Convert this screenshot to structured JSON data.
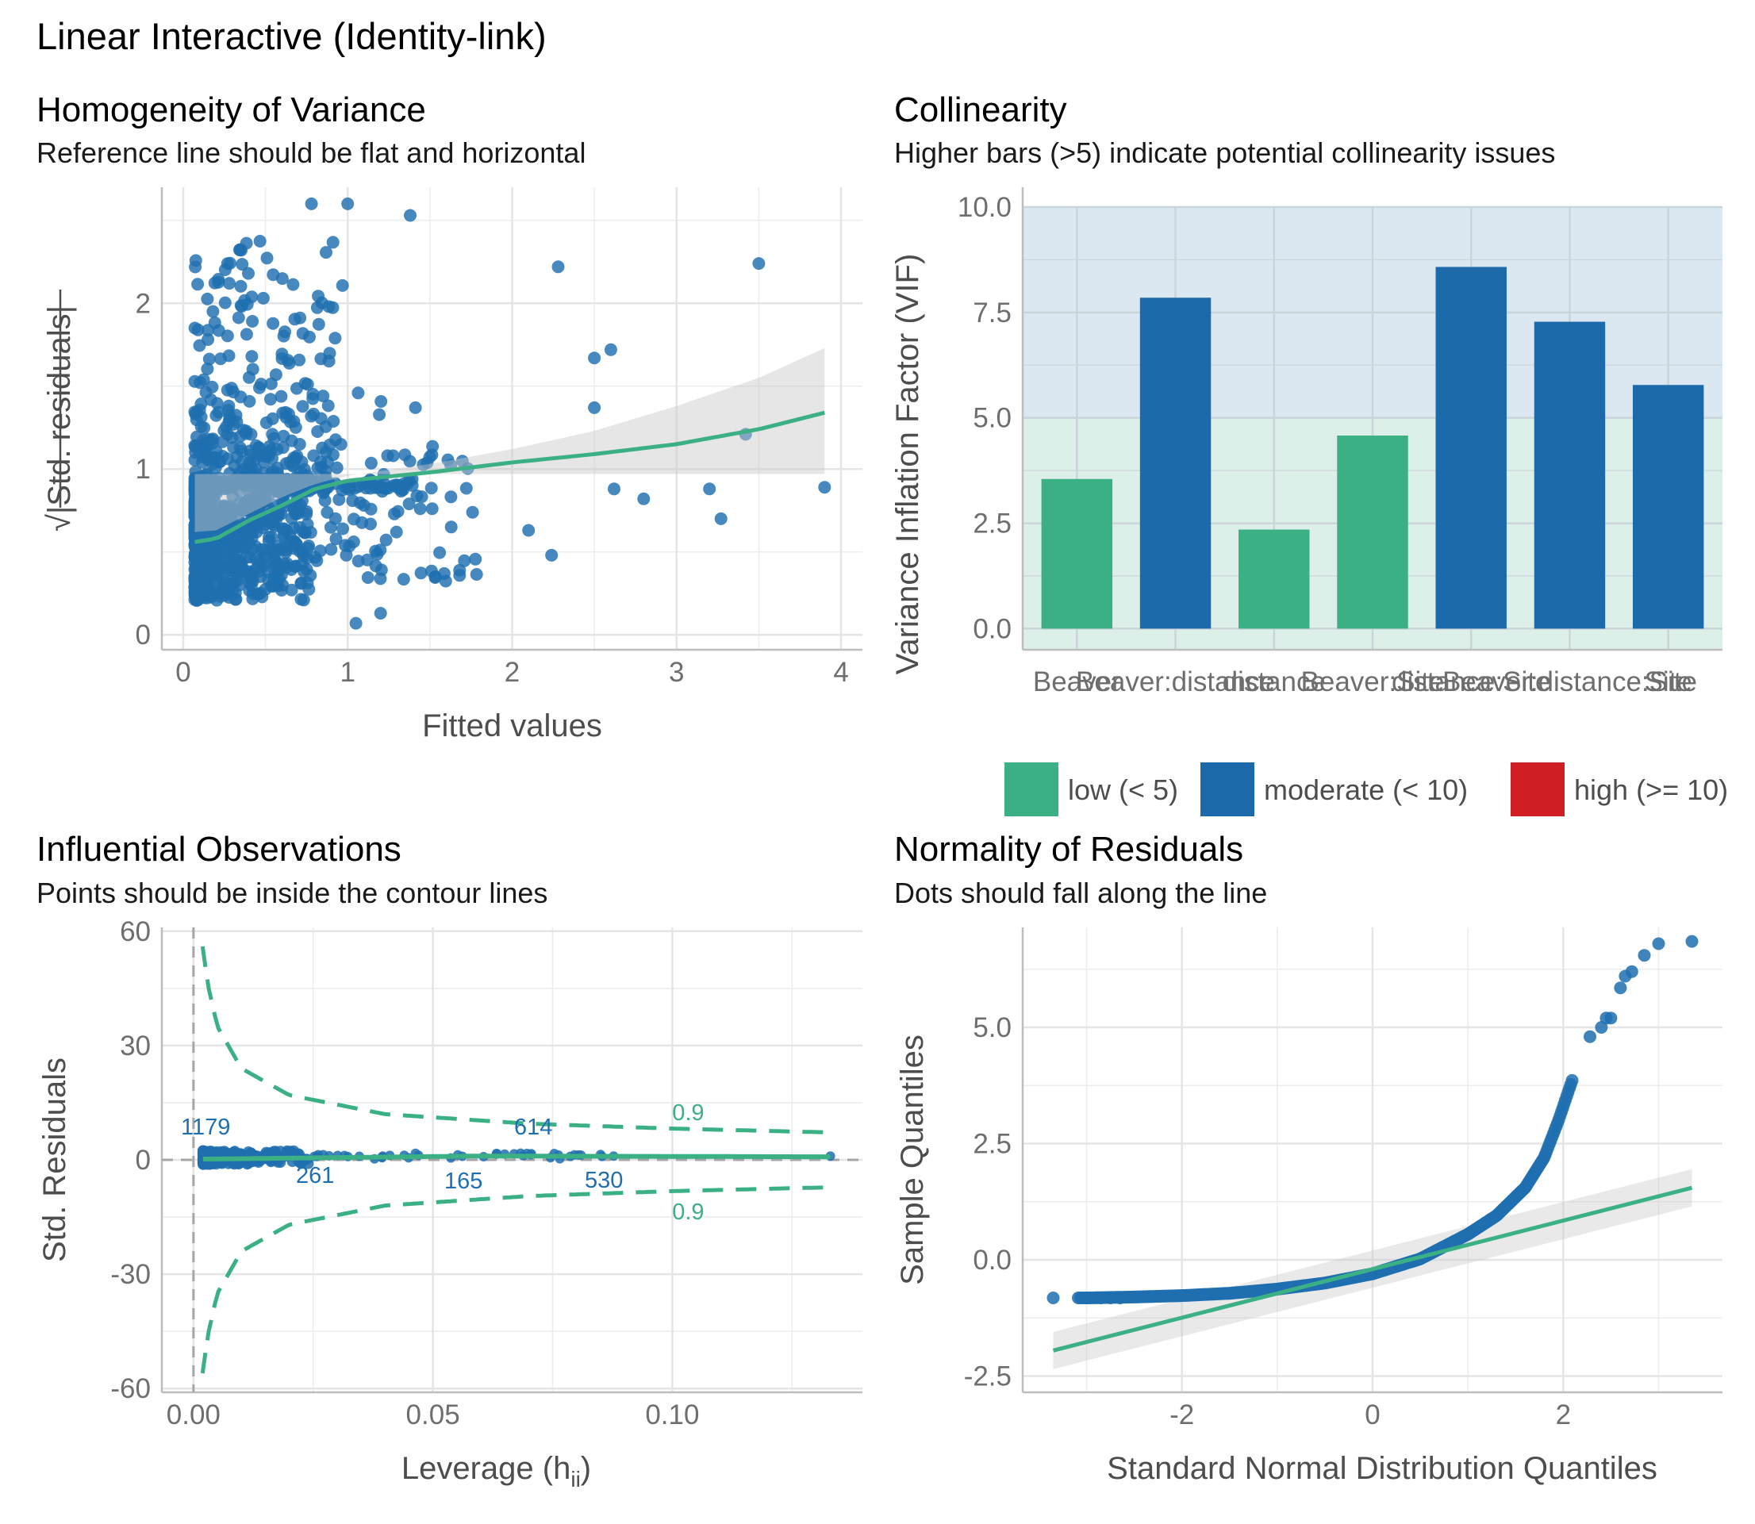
{
  "figure_title": "Linear Interactive (Identity-link)",
  "colors": {
    "green": "#3bb085",
    "blue": "#1d6aaa",
    "red": "#cf1f24",
    "point": "#1f6fb0",
    "grid": "#e5e5e5",
    "vif_low_band": "#ddefe9",
    "vif_high_band": "#dbe8f1"
  },
  "panels": {
    "homogeneity": {
      "title": "Homogeneity of Variance",
      "subtitle": "Reference line should be flat and horizontal"
    },
    "collinearity": {
      "title": "Collinearity",
      "subtitle": "Higher bars (>5) indicate potential collinearity issues"
    },
    "influential": {
      "title": "Influential Observations",
      "subtitle": "Points should be inside the contour lines"
    },
    "normality": {
      "title": "Normality of Residuals",
      "subtitle": "Dots should fall along the line"
    }
  },
  "chart_data": [
    {
      "id": "homogeneity",
      "type": "scatter",
      "xlabel": "Fitted values",
      "ylabel": "√|Std. residuals|",
      "xlim": [
        -0.13,
        4.13
      ],
      "ylim": [
        -0.09,
        2.7
      ],
      "xticks": [
        0,
        1,
        2,
        3,
        4
      ],
      "yticks": [
        0,
        1,
        2
      ],
      "grid": true,
      "n_points_approx": 1200,
      "notable_points": [
        [
          1.0,
          2.6
        ],
        [
          0.78,
          2.6
        ],
        [
          1.38,
          2.53
        ],
        [
          2.28,
          2.22
        ],
        [
          3.5,
          2.24
        ],
        [
          2.6,
          1.72
        ],
        [
          2.5,
          1.67
        ],
        [
          2.5,
          1.37
        ],
        [
          3.42,
          1.21
        ],
        [
          3.9,
          0.89
        ],
        [
          3.2,
          0.88
        ],
        [
          3.27,
          0.7
        ],
        [
          2.62,
          0.88
        ],
        [
          2.8,
          0.82
        ],
        [
          2.24,
          0.48
        ],
        [
          2.1,
          0.63
        ],
        [
          1.05,
          0.07
        ],
        [
          1.2,
          0.13
        ]
      ],
      "smooth": {
        "x": [
          0.07,
          0.2,
          0.4,
          0.6,
          0.8,
          1.0,
          1.5,
          2.0,
          2.5,
          3.0,
          3.5,
          3.9
        ],
        "y": [
          0.56,
          0.58,
          0.69,
          0.78,
          0.88,
          0.93,
          0.98,
          1.04,
          1.09,
          1.15,
          1.24,
          1.34
        ]
      },
      "ci_upper": [
        0.62,
        0.63,
        0.73,
        0.83,
        0.91,
        0.96,
        1.03,
        1.12,
        1.23,
        1.38,
        1.55,
        1.73
      ],
      "ci_lower": [
        0.5,
        0.53,
        0.65,
        0.74,
        0.85,
        0.9,
        0.94,
        0.97,
        0.98,
        0.98,
        0.98,
        0.97
      ]
    },
    {
      "id": "collinearity",
      "type": "bar",
      "ylabel": "Variance Inflation Factor (VIF)",
      "categories": [
        "Beaver",
        "Beaver:distance",
        "distance",
        "Site",
        "Beaver:Site",
        "distance:Site",
        "Beaver:distance:Site"
      ],
      "x_tick_labels_overplotted": [
        "Beaver",
        "Beaver:distance",
        "distance",
        "Beaver:Site",
        "distance:Site",
        "Beaver:distance:Site",
        "Site"
      ],
      "values": [
        3.55,
        7.85,
        2.35,
        4.58,
        8.58,
        7.28,
        5.78
      ],
      "classes": [
        "low",
        "moderate",
        "low",
        "low",
        "moderate",
        "moderate",
        "moderate"
      ],
      "ylim": [
        -0.5,
        10.0
      ],
      "yticks": [
        0.0,
        2.5,
        5.0,
        7.5,
        10.0
      ],
      "ytick_labels": [
        "0.0",
        "2.5",
        "5.0",
        "7.5",
        "10.0"
      ],
      "bands": [
        {
          "from": 0,
          "to": 5,
          "class": "low"
        },
        {
          "from": 5,
          "to": 10,
          "class": "moderate"
        }
      ],
      "legend": {
        "position": "bottom",
        "entries": [
          {
            "label": "low (< 5)",
            "class": "low"
          },
          {
            "label": "moderate (< 10)",
            "class": "moderate"
          },
          {
            "label": "high (>= 10)",
            "class": "high"
          }
        ]
      }
    },
    {
      "id": "influential",
      "type": "scatter",
      "xlabel": "Leverage (h",
      "xlabel_sub": "ii",
      "xlabel_end": ")",
      "ylabel": "Std. Residuals",
      "xlim": [
        -0.0066,
        0.1397
      ],
      "ylim": [
        -61,
        61
      ],
      "xticks": [
        0.0,
        0.05,
        0.1
      ],
      "xtick_labels": [
        "0.00",
        "0.05",
        "0.10"
      ],
      "yticks": [
        -60,
        -30,
        0,
        30,
        60
      ],
      "ytick_labels": [
        "-60",
        "-30",
        "0",
        "30",
        "60"
      ],
      "contour_level_labels": [
        "0.9",
        "0.9"
      ],
      "point_labels": [
        {
          "text": "1179",
          "x": 0.0035,
          "y": 2.5
        },
        {
          "text": "261",
          "x": 0.025,
          "y": 0.8
        },
        {
          "text": "165",
          "x": 0.055,
          "y": 0.5
        },
        {
          "text": "614",
          "x": 0.075,
          "y": 1.5
        },
        {
          "text": "530",
          "x": 0.085,
          "y": 1.0
        }
      ],
      "contour_upper": {
        "x": [
          0.0019,
          0.003,
          0.005,
          0.01,
          0.02,
          0.04,
          0.07,
          0.1,
          0.133
        ],
        "y": [
          56,
          46,
          35,
          24,
          17,
          12,
          9.5,
          8.2,
          7.2
        ]
      },
      "contour_lower": {
        "x": [
          0.0019,
          0.003,
          0.005,
          0.01,
          0.02,
          0.04,
          0.07,
          0.1,
          0.133
        ],
        "y": [
          -56,
          -46,
          -35,
          -24,
          -17,
          -12,
          -9.5,
          -8.2,
          -7.2
        ]
      },
      "smooth": {
        "x": [
          0.002,
          0.01,
          0.03,
          0.06,
          0.1,
          0.133
        ],
        "y": [
          0.2,
          0.3,
          0.6,
          1.0,
          0.9,
          0.8
        ]
      }
    },
    {
      "id": "normality",
      "type": "scatter",
      "xlabel": "Standard Normal Distribution Quantiles",
      "ylabel": "Sample Quantiles",
      "xlim": [
        -3.67,
        3.67
      ],
      "ylim": [
        -2.85,
        7.15
      ],
      "xticks": [
        -2,
        0,
        2
      ],
      "xtick_labels": [
        "-2",
        "0",
        "2"
      ],
      "yticks": [
        -2.5,
        0.0,
        2.5,
        5.0
      ],
      "ytick_labels": [
        "-2.5",
        "0.0",
        "2.5",
        "5.0"
      ],
      "qq_curve": {
        "x": [
          -3.35,
          -3.0,
          -2.5,
          -2.0,
          -1.5,
          -1.0,
          -0.5,
          0.0,
          0.5,
          1.0,
          1.3,
          1.6,
          1.8,
          1.95,
          2.05,
          2.1,
          2.2,
          2.35,
          2.5,
          2.8,
          3.0,
          3.35
        ],
        "y": [
          -0.82,
          -0.82,
          -0.8,
          -0.77,
          -0.72,
          -0.63,
          -0.5,
          -0.3,
          0.02,
          0.55,
          0.95,
          1.55,
          2.2,
          3.0,
          3.6,
          3.9,
          4.5,
          4.9,
          5.3,
          6.6,
          6.85,
          6.85
        ]
      },
      "reference_line": {
        "x": [
          -3.35,
          3.35
        ],
        "y": [
          -1.95,
          1.55
        ]
      },
      "ci_upper_ends": [
        -1.55,
        1.95
      ],
      "ci_lower_ends": [
        -2.35,
        1.15
      ]
    }
  ]
}
